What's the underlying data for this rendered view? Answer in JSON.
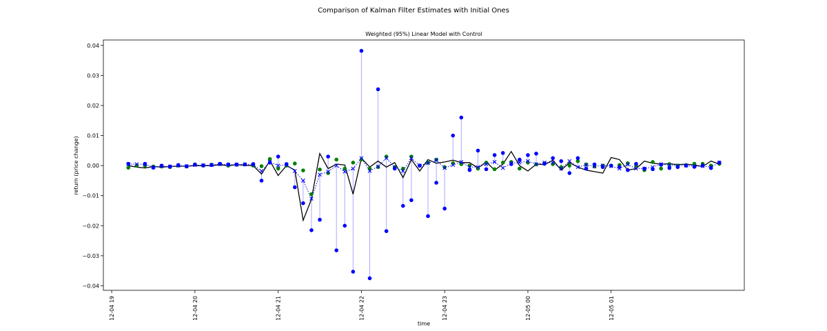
{
  "figure": {
    "suptitle": "Comparison of Kalman Filter Estimates with Initial Ones"
  },
  "chart_data": {
    "type": "scatter",
    "title": "Weighted (95%) Linear Model with Control",
    "xlabel": "time",
    "ylabel": "return (price change)",
    "x_ticks": [
      "12-04 19",
      "12-04 20",
      "12-04 21",
      "12-04 22",
      "12-04 23",
      "12-05 00",
      "12-05 01"
    ],
    "y_ticks": [
      "0.04",
      "0.03",
      "0.02",
      "0.01",
      "0.00",
      "−0.01",
      "−0.02",
      "−0.03",
      "−0.04"
    ],
    "ylim": [
      -0.0415,
      0.0418
    ],
    "grid": false,
    "x_unit": "minutes after 12-04 19:00",
    "xlim": [
      -6,
      456
    ],
    "colors": {
      "observed_points": "#0000ff",
      "green_points": "#008000",
      "kalman_estimate": "#0000ff",
      "black_line": "#000000",
      "residual_stem": "#aaaaff"
    },
    "series": [
      {
        "marker": "circle",
        "color": "#0000ff",
        "x": [
          12,
          24,
          30,
          36,
          42,
          48,
          54,
          60,
          66,
          72,
          78,
          84,
          90,
          96,
          102,
          108,
          114,
          120,
          126,
          132,
          138,
          144,
          150,
          156,
          162,
          168,
          174,
          180,
          186,
          192,
          198,
          204,
          210,
          216,
          222,
          228,
          234,
          240,
          246,
          252,
          258,
          264,
          270,
          276,
          282,
          288,
          294,
          300,
          306,
          312,
          318,
          324,
          330,
          336,
          342,
          348,
          354,
          360,
          366,
          372,
          378,
          384,
          390,
          396,
          402,
          408,
          414,
          420,
          426,
          432,
          438
        ],
        "values": [
          0.0006,
          0.0006,
          -0.0007,
          0.0,
          -0.0003,
          0.0002,
          -0.0002,
          0.0003,
          0.0001,
          0.0002,
          0.0006,
          0.0004,
          0.0004,
          0.0004,
          0.0005,
          -0.005,
          0.001,
          0.003,
          0.0005,
          -0.0072,
          -0.0125,
          -0.0215,
          -0.018,
          0.003,
          -0.0282,
          -0.02,
          -0.0353,
          0.0382,
          -0.0375,
          0.0254,
          -0.0218,
          -0.001,
          -0.0134,
          -0.0115,
          0.0,
          -0.0168,
          -0.0057,
          -0.0143,
          0.01,
          0.016,
          -0.0015,
          0.005,
          -0.0012,
          0.0035,
          0.0042,
          0.0005,
          0.002,
          0.0035,
          0.004,
          0.0006,
          0.0025,
          0.0015,
          -0.0025,
          0.0025,
          -0.001,
          0.0004,
          -0.0005,
          0.0,
          -0.0005,
          -0.0015,
          0.0006,
          -0.001,
          -0.0012,
          0.0003,
          -0.0008,
          -0.0005,
          0.0,
          -0.0004,
          0.0,
          -0.0008,
          0.001
        ]
      },
      {
        "marker": "circle",
        "color": "#008000",
        "x": [
          12,
          18,
          24,
          30,
          36,
          42,
          48,
          54,
          60,
          66,
          72,
          78,
          84,
          90,
          96,
          102,
          108,
          114,
          120,
          126,
          132,
          138,
          144,
          150,
          156,
          162,
          168,
          174,
          180,
          186,
          192,
          198,
          204,
          210,
          216,
          222,
          228,
          234,
          240,
          246,
          252,
          258,
          264,
          270,
          276,
          282,
          288,
          294,
          300,
          306,
          312,
          318,
          324,
          330,
          336,
          342,
          348,
          354,
          360,
          366,
          372,
          378,
          384,
          390,
          396,
          402,
          408,
          414,
          420,
          426,
          432,
          438
        ],
        "values": [
          -0.0007,
          0.0,
          0.0,
          -0.0003,
          -0.0003,
          -0.0005,
          0.0,
          -0.0003,
          0.0004,
          0.0,
          0.0003,
          0.0005,
          0.0,
          0.0003,
          0.0004,
          0.0,
          -0.0002,
          0.0022,
          -0.001,
          0.0,
          0.0007,
          -0.0016,
          -0.0095,
          -0.0013,
          -0.0025,
          0.002,
          -0.001,
          0.001,
          0.002,
          -0.001,
          -0.0005,
          0.003,
          -0.0005,
          -0.001,
          0.003,
          0.0,
          0.001,
          0.002,
          -0.0005,
          0.0008,
          0.0005,
          0.0,
          -0.001,
          0.001,
          -0.0012,
          0.001,
          0.0012,
          -0.001,
          0.001,
          0.0004,
          0.0008,
          0.0005,
          -0.0005,
          0.0,
          0.0015,
          0.0004,
          -0.0003,
          0.0,
          0.0,
          0.0002,
          0.0008,
          0.0,
          -0.0015,
          0.0012,
          -0.001,
          0.0005,
          0.0,
          0.0002,
          0.0006,
          0.0006,
          0.0,
          0.0006
        ]
      },
      {
        "marker": "x",
        "style": "dotted",
        "color": "#0000ff",
        "x": [
          12,
          18,
          24,
          30,
          36,
          42,
          48,
          54,
          60,
          66,
          72,
          78,
          84,
          90,
          96,
          102,
          108,
          114,
          120,
          126,
          132,
          138,
          144,
          150,
          156,
          162,
          168,
          174,
          180,
          186,
          192,
          198,
          204,
          210,
          216,
          222,
          228,
          234,
          240,
          246,
          252,
          258,
          264,
          270,
          276,
          282,
          288,
          294,
          300,
          306,
          312,
          318,
          324,
          330,
          336,
          342,
          348,
          354,
          360,
          366,
          372,
          378,
          384,
          390,
          396,
          402,
          408,
          414,
          420,
          426,
          432,
          438
        ],
        "values": [
          0.0005,
          0.0005,
          0.0004,
          -0.0005,
          -0.0002,
          -0.0003,
          0.0,
          -0.0002,
          0.0002,
          0.0001,
          0.0002,
          0.0005,
          0.0003,
          0.0003,
          0.0004,
          0.0003,
          -0.0018,
          0.0012,
          0.0,
          0.0003,
          -0.0018,
          -0.005,
          -0.011,
          -0.003,
          -0.002,
          0.0,
          -0.002,
          -0.001,
          0.0025,
          -0.0018,
          -0.0003,
          0.0025,
          -0.0005,
          -0.0018,
          0.0025,
          0.0,
          0.0008,
          0.0018,
          -0.0008,
          0.0002,
          0.0012,
          -0.0005,
          -0.0005,
          0.0005,
          0.0012,
          -0.0008,
          0.0008,
          0.001,
          0.0015,
          0.0005,
          0.001,
          0.001,
          -0.001,
          0.0015,
          -0.0005,
          0.0002,
          -0.0002,
          0.0,
          -0.0002,
          -0.001,
          0.0004,
          -0.001,
          -0.001,
          -0.0005,
          0.0005,
          0.0002,
          0.0,
          0.0,
          -0.0002,
          -0.0002,
          -0.0005,
          0.001
        ]
      },
      {
        "marker": "none",
        "style": "solid",
        "color": "#000000",
        "x": [
          12,
          18,
          24,
          30,
          36,
          42,
          48,
          54,
          60,
          66,
          72,
          78,
          84,
          90,
          96,
          102,
          108,
          114,
          120,
          126,
          132,
          138,
          144,
          150,
          156,
          162,
          168,
          174,
          180,
          186,
          192,
          198,
          204,
          210,
          216,
          222,
          228,
          234,
          240,
          246,
          252,
          258,
          264,
          270,
          276,
          282,
          288,
          294,
          300,
          306,
          312,
          318,
          324,
          330,
          336,
          342,
          348,
          354,
          360,
          366,
          372,
          378,
          384,
          390,
          396,
          402,
          408,
          414,
          420,
          426,
          432,
          438
        ],
        "values": [
          0.0,
          -0.0005,
          -0.0008,
          -0.0003,
          -0.0005,
          -0.0003,
          -0.0002,
          -0.0002,
          0.0,
          0.0,
          0.0,
          0.0003,
          0.0,
          0.0003,
          0.0001,
          0.0,
          -0.0028,
          0.0016,
          -0.0033,
          0.0,
          -0.0015,
          -0.0182,
          -0.0112,
          0.004,
          -0.001,
          0.0005,
          0.0002,
          -0.0095,
          0.0025,
          -0.0005,
          0.0015,
          -0.0005,
          0.001,
          -0.004,
          0.002,
          -0.0018,
          0.002,
          0.0008,
          0.0012,
          0.0018,
          0.001,
          0.001,
          -0.0008,
          0.0012,
          -0.0015,
          0.0005,
          0.0047,
          0.0,
          -0.0018,
          0.0005,
          0.0003,
          0.0018,
          -0.0015,
          0.001,
          -0.0005,
          -0.0015,
          -0.002,
          -0.0025,
          0.0027,
          0.002,
          -0.0015,
          -0.001,
          0.0015,
          0.0008,
          0.0005,
          0.0006,
          0.0003,
          0.0005,
          0.0002,
          -0.0003,
          0.0015,
          0.0005
        ]
      }
    ]
  }
}
